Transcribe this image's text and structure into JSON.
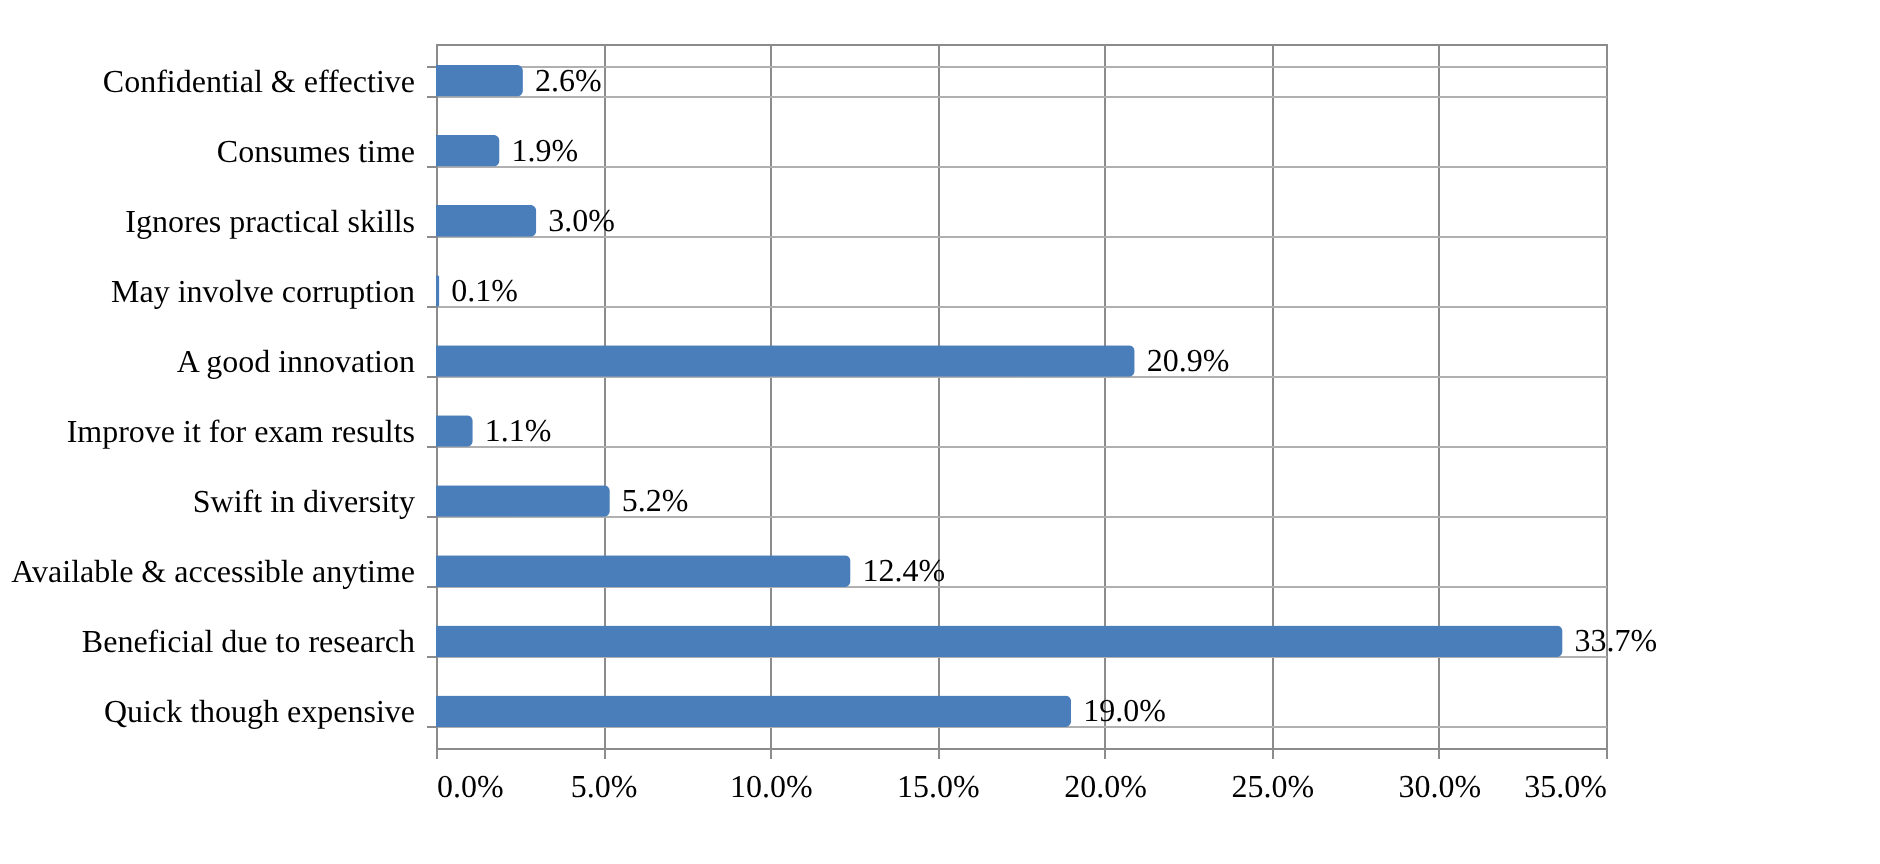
{
  "chart_data": {
    "type": "bar",
    "orientation": "horizontal",
    "categories": [
      "Confidential & effective",
      "Consumes time",
      "Ignores practical skills",
      "May involve corruption",
      "A good innovation",
      "Improve it for exam results",
      "Swift in diversity",
      "Available & accessible anytime",
      "Beneficial due to research",
      "Quick though expensive"
    ],
    "values": [
      2.6,
      1.9,
      3.0,
      0.1,
      20.9,
      1.1,
      5.2,
      12.4,
      33.7,
      19.0
    ],
    "value_labels": [
      "2.6%",
      "1.9%",
      "3.0%",
      "0.1%",
      "20.9%",
      "1.1%",
      "5.2%",
      "12.4%",
      "33.7%",
      "19.0%"
    ],
    "color": "#4a7ebb",
    "xlim": [
      0,
      35
    ],
    "xticks": [
      {
        "value": 0,
        "label": "0.0%"
      },
      {
        "value": 5,
        "label": "5.0%"
      },
      {
        "value": 10,
        "label": "10.0%"
      },
      {
        "value": 15,
        "label": "15.0%"
      },
      {
        "value": 20,
        "label": "20.0%"
      },
      {
        "value": 25,
        "label": "25.0%"
      },
      {
        "value": 30,
        "label": "30.0%"
      },
      {
        "value": 35,
        "label": "35.0%"
      }
    ],
    "grid": true
  }
}
